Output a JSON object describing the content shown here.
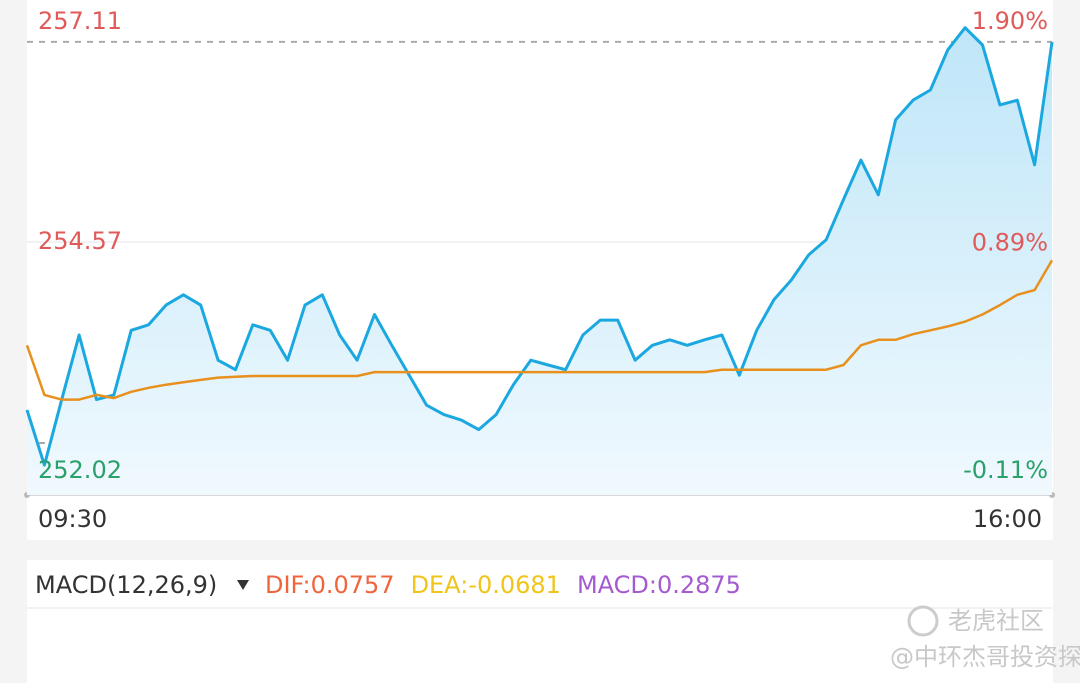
{
  "chart_data": {
    "type": "line",
    "categories": [
      "09:30",
      null,
      null,
      null,
      null,
      null,
      null,
      null,
      null,
      null,
      null,
      null,
      null,
      null,
      null,
      null,
      null,
      null,
      null,
      null,
      null,
      null,
      null,
      null,
      null,
      null,
      null,
      null,
      null,
      null,
      null,
      null,
      null,
      null,
      null,
      null,
      null,
      null,
      null,
      null,
      null,
      null,
      null,
      null,
      null,
      null,
      null,
      null,
      null,
      null,
      null,
      null,
      null,
      null,
      null,
      null,
      null,
      null,
      null,
      "16:00"
    ],
    "series": [
      {
        "color": "#1ba8e0",
        "values": [
          252.44,
          251.74,
          252.57,
          253.39,
          252.57,
          252.63,
          253.45,
          253.52,
          253.77,
          253.9,
          253.77,
          253.07,
          252.95,
          253.52,
          253.45,
          253.07,
          253.77,
          253.9,
          253.39,
          253.07,
          253.65,
          253.26,
          252.88,
          252.5,
          252.38,
          252.31,
          252.19,
          252.38,
          252.76,
          253.07,
          253.01,
          252.95,
          253.39,
          253.58,
          253.58,
          253.07,
          253.26,
          253.33,
          253.26,
          253.33,
          253.39,
          252.88,
          253.45,
          253.84,
          254.09,
          254.41,
          254.6,
          255.11,
          255.61,
          255.17,
          256.12,
          256.37,
          256.5,
          257.01,
          257.29,
          257.07,
          256.31,
          256.37,
          255.55,
          257.11
        ]
      },
      {
        "color": "#e8901e",
        "values": [
          253.26,
          252.63,
          252.57,
          252.57,
          252.63,
          252.59,
          252.67,
          252.72,
          252.76,
          252.79,
          252.82,
          252.85,
          252.86,
          252.87,
          252.87,
          252.87,
          252.87,
          252.87,
          252.87,
          252.87,
          252.92,
          252.92,
          252.92,
          252.92,
          252.92,
          252.92,
          252.92,
          252.92,
          252.92,
          252.92,
          252.92,
          252.92,
          252.92,
          252.92,
          252.92,
          252.92,
          252.92,
          252.92,
          252.92,
          252.92,
          252.95,
          252.95,
          252.95,
          252.95,
          252.95,
          252.95,
          252.95,
          253.01,
          253.26,
          253.33,
          253.33,
          253.4,
          253.45,
          253.5,
          253.56,
          253.65,
          253.77,
          253.9,
          253.96,
          254.34
        ]
      }
    ],
    "ylim": [
      251.36,
      257.54
    ],
    "yticks": [
      252.02,
      254.57,
      257.11
    ],
    "y2lim": [
      -0.37,
      2.07
    ],
    "y2ticks": [
      {
        "value": -0.11,
        "label": "-0.11%"
      },
      {
        "value": 0.89,
        "label": "0.89%"
      },
      {
        "value": 1.9,
        "label": "1.90%"
      }
    ],
    "up_color": "#e05a5a",
    "down_color": "#2aa06a"
  },
  "macd": {
    "title": "MACD(12,26,9)",
    "labels": [
      {
        "text": "DIF:0.0757",
        "color": "#f0643c"
      },
      {
        "text": "DEA:-0.0681",
        "color": "#f0c419"
      },
      {
        "text": "MACD:0.2875",
        "color": "#a55bd0"
      }
    ]
  },
  "watermark": {
    "brand": "老虎社区",
    "author": "@中环杰哥投资探秘"
  }
}
